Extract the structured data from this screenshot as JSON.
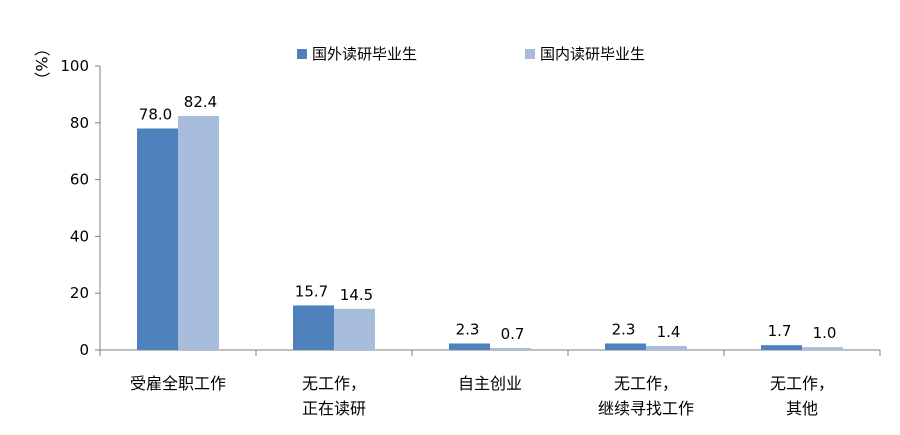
{
  "chart_data": {
    "type": "bar",
    "title": "",
    "xlabel": "",
    "ylabel": "（%）",
    "ylim": [
      0,
      100
    ],
    "yticks": [
      0,
      20,
      40,
      60,
      80,
      100
    ],
    "grid": false,
    "legend_position": "top",
    "categories": [
      [
        "受雇全职工作"
      ],
      [
        "无工作，",
        "正在读研"
      ],
      [
        "自主创业"
      ],
      [
        "无工作，",
        "继续寻找工作"
      ],
      [
        "无工作，",
        "其他"
      ]
    ],
    "series": [
      {
        "name": "国外读研毕业生",
        "color": "#4F81BD",
        "values": [
          78.0,
          15.7,
          2.3,
          2.3,
          1.7
        ],
        "labels": [
          "78.0",
          "15.7",
          "2.3",
          "2.3",
          "1.7"
        ]
      },
      {
        "name": "国内读研毕业生",
        "color": "#A8BCDC",
        "values": [
          82.4,
          14.5,
          0.7,
          1.4,
          1.0
        ],
        "labels": [
          "82.4",
          "14.5",
          "0.7",
          "1.4",
          "1.0"
        ]
      }
    ]
  }
}
